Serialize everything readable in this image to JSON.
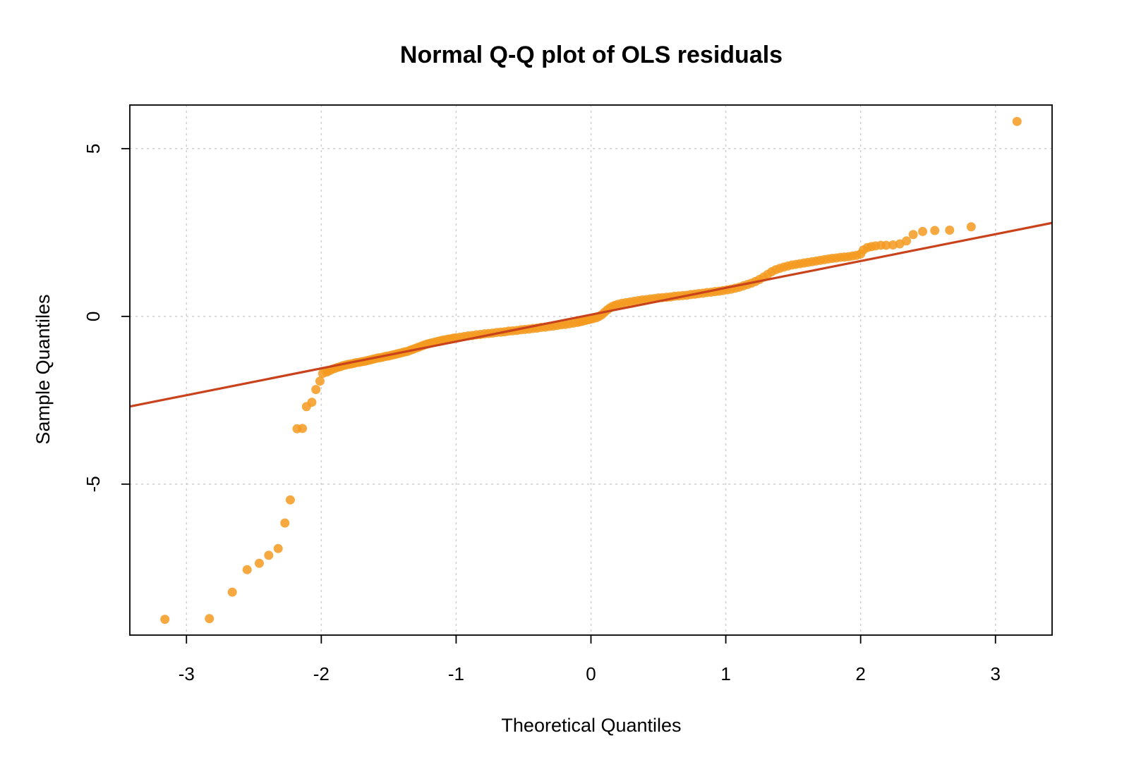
{
  "chart_data": {
    "type": "scatter",
    "title": "Normal Q-Q plot of OLS residuals",
    "xlabel": "Theoretical Quantiles",
    "ylabel": "Sample Quantiles",
    "xlim": [
      -3.42,
      3.42
    ],
    "ylim": [
      -9.5,
      6.3
    ],
    "xticks": [
      -3,
      -2,
      -1,
      0,
      1,
      2,
      3
    ],
    "xtick_labels": [
      "-3",
      "-2",
      "-1",
      "0",
      "1",
      "2",
      "3"
    ],
    "yticks": [
      -5,
      0,
      5
    ],
    "ytick_labels": [
      "-5",
      "0",
      "5"
    ],
    "grid": true,
    "point_color": "#f39a1e",
    "line_color": "#c8431c",
    "reference_line": {
      "intercept": 0.05,
      "slope": 0.8
    },
    "series": [
      {
        "points": [
          [
            -3.16,
            -9.03
          ],
          [
            -2.83,
            -9.01
          ],
          [
            -2.66,
            -8.22
          ],
          [
            -2.55,
            -7.55
          ],
          [
            -2.46,
            -7.36
          ],
          [
            -2.39,
            -7.12
          ],
          [
            -2.32,
            -6.92
          ],
          [
            -2.27,
            -6.16
          ],
          [
            -2.23,
            -5.47
          ],
          [
            -2.18,
            -3.35
          ],
          [
            -2.14,
            -3.34
          ],
          [
            -2.11,
            -2.69
          ],
          [
            -2.07,
            -2.56
          ],
          [
            -2.04,
            -2.18
          ],
          [
            -2.01,
            -1.93
          ],
          [
            -1.99,
            -1.7
          ],
          [
            -1.96,
            -1.66
          ],
          [
            -1.94,
            -1.62
          ],
          [
            -1.92,
            -1.58
          ],
          [
            -1.9,
            -1.55
          ],
          [
            -1.88,
            -1.52
          ],
          [
            -1.86,
            -1.5
          ],
          [
            -1.84,
            -1.47
          ],
          [
            -1.82,
            -1.45
          ],
          [
            -1.8,
            -1.43
          ],
          [
            -1.78,
            -1.42
          ],
          [
            -1.76,
            -1.4
          ],
          [
            -1.74,
            -1.38
          ],
          [
            -1.72,
            -1.37
          ],
          [
            -1.7,
            -1.35
          ],
          [
            -1.68,
            -1.34
          ],
          [
            -1.66,
            -1.32
          ],
          [
            -1.64,
            -1.3
          ],
          [
            -1.62,
            -1.28
          ],
          [
            -1.6,
            -1.26
          ],
          [
            -1.58,
            -1.24
          ],
          [
            -1.56,
            -1.23
          ],
          [
            -1.54,
            -1.21
          ],
          [
            -1.52,
            -1.19
          ],
          [
            -1.5,
            -1.18
          ],
          [
            -1.48,
            -1.16
          ],
          [
            -1.46,
            -1.14
          ],
          [
            -1.44,
            -1.12
          ],
          [
            -1.42,
            -1.1
          ],
          [
            -1.4,
            -1.08
          ],
          [
            -1.38,
            -1.06
          ],
          [
            -1.36,
            -1.04
          ],
          [
            -1.34,
            -1.01
          ],
          [
            -1.32,
            -0.98
          ],
          [
            -1.3,
            -0.95
          ],
          [
            -1.28,
            -0.92
          ],
          [
            -1.26,
            -0.89
          ],
          [
            -1.24,
            -0.86
          ],
          [
            -1.22,
            -0.83
          ],
          [
            -1.2,
            -0.81
          ],
          [
            -1.18,
            -0.79
          ],
          [
            -1.16,
            -0.77
          ],
          [
            -1.14,
            -0.75
          ],
          [
            -1.12,
            -0.73
          ],
          [
            -1.1,
            -0.71
          ],
          [
            -1.08,
            -0.7
          ],
          [
            -1.06,
            -0.68
          ],
          [
            -1.04,
            -0.67
          ],
          [
            -1.02,
            -0.65
          ],
          [
            -1.0,
            -0.64
          ],
          [
            -0.97,
            -0.62
          ],
          [
            -0.94,
            -0.6
          ],
          [
            -0.91,
            -0.58
          ],
          [
            -0.88,
            -0.57
          ],
          [
            -0.85,
            -0.55
          ],
          [
            -0.82,
            -0.54
          ],
          [
            -0.79,
            -0.52
          ],
          [
            -0.76,
            -0.51
          ],
          [
            -0.73,
            -0.5
          ],
          [
            -0.7,
            -0.48
          ],
          [
            -0.67,
            -0.47
          ],
          [
            -0.64,
            -0.46
          ],
          [
            -0.61,
            -0.44
          ],
          [
            -0.58,
            -0.43
          ],
          [
            -0.55,
            -0.42
          ],
          [
            -0.52,
            -0.4
          ],
          [
            -0.49,
            -0.39
          ],
          [
            -0.46,
            -0.38
          ],
          [
            -0.43,
            -0.36
          ],
          [
            -0.4,
            -0.35
          ],
          [
            -0.37,
            -0.33
          ],
          [
            -0.34,
            -0.32
          ],
          [
            -0.31,
            -0.3
          ],
          [
            -0.28,
            -0.29
          ],
          [
            -0.25,
            -0.27
          ],
          [
            -0.22,
            -0.25
          ],
          [
            -0.19,
            -0.24
          ],
          [
            -0.16,
            -0.22
          ],
          [
            -0.13,
            -0.2
          ],
          [
            -0.1,
            -0.18
          ],
          [
            -0.08,
            -0.16
          ],
          [
            -0.06,
            -0.14
          ],
          [
            -0.04,
            -0.12
          ],
          [
            -0.02,
            -0.1
          ],
          [
            0.0,
            -0.08
          ],
          [
            0.02,
            -0.06
          ],
          [
            0.04,
            -0.04
          ],
          [
            0.06,
            0.0
          ],
          [
            0.08,
            0.05
          ],
          [
            0.1,
            0.12
          ],
          [
            0.12,
            0.19
          ],
          [
            0.14,
            0.25
          ],
          [
            0.16,
            0.3
          ],
          [
            0.18,
            0.33
          ],
          [
            0.2,
            0.36
          ],
          [
            0.23,
            0.39
          ],
          [
            0.26,
            0.41
          ],
          [
            0.29,
            0.43
          ],
          [
            0.32,
            0.45
          ],
          [
            0.35,
            0.47
          ],
          [
            0.38,
            0.49
          ],
          [
            0.41,
            0.5
          ],
          [
            0.44,
            0.52
          ],
          [
            0.47,
            0.53
          ],
          [
            0.5,
            0.55
          ],
          [
            0.53,
            0.56
          ],
          [
            0.56,
            0.57
          ],
          [
            0.59,
            0.58
          ],
          [
            0.62,
            0.6
          ],
          [
            0.65,
            0.61
          ],
          [
            0.68,
            0.62
          ],
          [
            0.71,
            0.63
          ],
          [
            0.74,
            0.65
          ],
          [
            0.77,
            0.66
          ],
          [
            0.8,
            0.68
          ],
          [
            0.83,
            0.69
          ],
          [
            0.86,
            0.71
          ],
          [
            0.89,
            0.72
          ],
          [
            0.92,
            0.74
          ],
          [
            0.95,
            0.75
          ],
          [
            0.98,
            0.77
          ],
          [
            1.01,
            0.79
          ],
          [
            1.04,
            0.81
          ],
          [
            1.07,
            0.84
          ],
          [
            1.1,
            0.87
          ],
          [
            1.13,
            0.91
          ],
          [
            1.16,
            0.95
          ],
          [
            1.19,
            0.99
          ],
          [
            1.22,
            1.04
          ],
          [
            1.25,
            1.1
          ],
          [
            1.28,
            1.17
          ],
          [
            1.31,
            1.25
          ],
          [
            1.34,
            1.33
          ],
          [
            1.37,
            1.39
          ],
          [
            1.4,
            1.43
          ],
          [
            1.43,
            1.47
          ],
          [
            1.46,
            1.5
          ],
          [
            1.49,
            1.53
          ],
          [
            1.52,
            1.55
          ],
          [
            1.55,
            1.57
          ],
          [
            1.58,
            1.59
          ],
          [
            1.61,
            1.61
          ],
          [
            1.64,
            1.63
          ],
          [
            1.67,
            1.65
          ],
          [
            1.7,
            1.67
          ],
          [
            1.73,
            1.69
          ],
          [
            1.76,
            1.71
          ],
          [
            1.79,
            1.73
          ],
          [
            1.82,
            1.74
          ],
          [
            1.85,
            1.76
          ],
          [
            1.88,
            1.77
          ],
          [
            1.91,
            1.78
          ],
          [
            1.94,
            1.8
          ],
          [
            1.97,
            1.82
          ],
          [
            2.0,
            1.86
          ],
          [
            2.02,
            1.98
          ],
          [
            2.05,
            2.05
          ],
          [
            2.08,
            2.08
          ],
          [
            2.11,
            2.1
          ],
          [
            2.15,
            2.12
          ],
          [
            2.19,
            2.12
          ],
          [
            2.24,
            2.13
          ],
          [
            2.29,
            2.16
          ],
          [
            2.34,
            2.25
          ],
          [
            2.39,
            2.44
          ],
          [
            2.46,
            2.53
          ],
          [
            2.55,
            2.56
          ],
          [
            2.66,
            2.57
          ],
          [
            2.82,
            2.67
          ],
          [
            3.16,
            5.81
          ]
        ]
      }
    ]
  }
}
